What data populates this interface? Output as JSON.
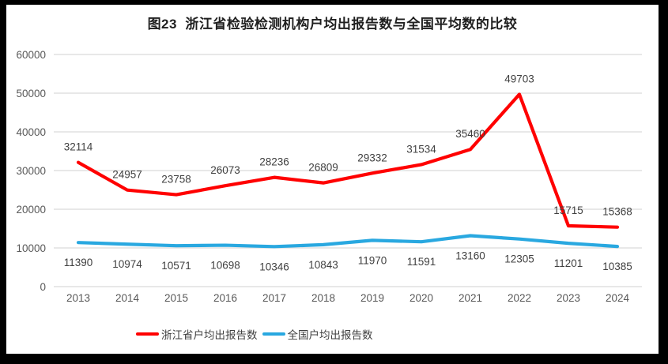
{
  "frame": {
    "border_color": "#000000",
    "background": "#ffffff"
  },
  "chart_data": {
    "type": "line",
    "title": "图23  浙江省检验检测机构户均出报告数与全国平均数的比较",
    "categories": [
      "2013",
      "2014",
      "2015",
      "2016",
      "2017",
      "2018",
      "2019",
      "2020",
      "2021",
      "2022",
      "2023",
      "2024"
    ],
    "series": [
      {
        "name": "浙江省户均出报告数",
        "color": "#FF0000",
        "label_position": "above",
        "values": [
          32114,
          24957,
          23758,
          26073,
          28236,
          26809,
          29332,
          31534,
          35460,
          49703,
          15715,
          15368
        ]
      },
      {
        "name": "全国户均出报告数",
        "color": "#29A8E0",
        "label_position": "below",
        "values": [
          11390,
          10974,
          10571,
          10698,
          10346,
          10843,
          11970,
          11591,
          13160,
          12305,
          11201,
          10385
        ]
      }
    ],
    "ylim": [
      0,
      60000
    ],
    "yticks": [
      0,
      10000,
      20000,
      30000,
      40000,
      50000,
      60000
    ],
    "xlabel": "",
    "ylabel": "",
    "grid": "horizontal",
    "legend_position": "bottom",
    "style": {
      "grid_color": "#D9D9D9",
      "axis_label_color": "#595959",
      "data_label_color": "#404040",
      "title_color": "#1F1F1F",
      "line_width": 4.2
    }
  }
}
